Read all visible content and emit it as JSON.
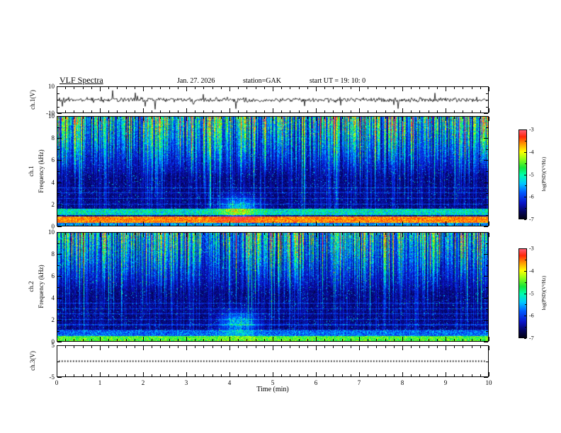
{
  "header": {
    "title": "VLF Spectra",
    "date": "Jan. 27. 2026",
    "station": "station=GAK",
    "start_ut": "start UT =  19: 10: 0"
  },
  "xaxis": {
    "label": "Time (min)",
    "range": [
      0,
      10
    ],
    "major_ticks": [
      0,
      1,
      2,
      3,
      4,
      5,
      6,
      7,
      8,
      9,
      10
    ],
    "minor_ticks_per_interval": 5
  },
  "ylabels": {
    "ch1v": "ch.1(V)",
    "ch1": "ch.1",
    "ch2": "ch.2",
    "freq": "Frequency (kHz)",
    "ch3v": "ch.3(V)"
  },
  "colorbar": {
    "label": "log(PSD)(V²/Hz)",
    "ticks": [
      -3,
      -4,
      -5,
      -6,
      -7
    ],
    "range": [
      -7,
      -3
    ]
  },
  "colormap": [
    [
      0.0,
      [
        2,
        2,
        18
      ]
    ],
    [
      0.08,
      [
        4,
        4,
        90
      ]
    ],
    [
      0.18,
      [
        10,
        20,
        200
      ]
    ],
    [
      0.3,
      [
        0,
        90,
        255
      ]
    ],
    [
      0.4,
      [
        0,
        200,
        255
      ]
    ],
    [
      0.5,
      [
        0,
        255,
        170
      ]
    ],
    [
      0.58,
      [
        20,
        230,
        60
      ]
    ],
    [
      0.68,
      [
        150,
        255,
        20
      ]
    ],
    [
      0.76,
      [
        255,
        255,
        0
      ]
    ],
    [
      0.85,
      [
        255,
        150,
        0
      ]
    ],
    [
      0.93,
      [
        255,
        40,
        10
      ]
    ],
    [
      1.0,
      [
        255,
        90,
        110
      ]
    ]
  ],
  "chart_data": [
    {
      "type": "line",
      "name": "ch1_waveform",
      "ylabel": "ch.1(V)",
      "xlim": [
        0,
        10
      ],
      "ylim": [
        -10,
        10
      ],
      "yticks_labeled": [
        10,
        -10
      ],
      "yticks_minor": [
        5,
        0,
        -5
      ],
      "summary": "broadband VLF noise waveform, mean 0 V, typical amplitude +/-3 V, sporadic impulsive spikes reaching +/-9 V across the full 10 min record",
      "noise_sigma": 1.6,
      "spike_probability": 0.02,
      "seed": 1337
    },
    {
      "type": "heatmap",
      "name": "ch1_spectrogram",
      "channel": "ch.1",
      "ylabel": "Frequency (kHz)",
      "xlim": [
        0,
        10
      ],
      "ylim": [
        0,
        10
      ],
      "yticks_labeled": [
        0,
        2,
        4,
        6,
        8,
        10
      ],
      "yticks_minor": [
        1,
        3,
        5,
        7,
        9
      ],
      "zlim": [
        -7,
        -3
      ],
      "summary": "dense impulsive sferic streaks strongest above ~5 kHz (green-yellow), dark blue background below, strong red power-supply band near 0.3-0.9 kHz, cyan-green band near 1-1.6 kHz, transient green patch near t=4.2 min at 1-2.5 kHz",
      "seed": 40502,
      "top_intensity": 1.0,
      "bands": [
        {
          "f0": 0.1,
          "f1": 0.16,
          "v": 0.46,
          "dv": 0.3
        },
        {
          "f0": 0.028,
          "f1": 0.09,
          "v": 0.86,
          "dv": 0.18
        },
        {
          "f0": 0.0,
          "f1": 0.028,
          "v": 0.34,
          "dv": 0.3
        }
      ],
      "blob": {
        "x": 0.42,
        "fy": 0.17,
        "sx": 0.03,
        "sy": 0.07,
        "amp": 0.4
      }
    },
    {
      "type": "heatmap",
      "name": "ch2_spectrogram",
      "channel": "ch.2",
      "ylabel": "Frequency (kHz)",
      "xlim": [
        0,
        10
      ],
      "ylim": [
        0,
        10
      ],
      "yticks_labeled": [
        0,
        2,
        4,
        6,
        8,
        10
      ],
      "yticks_minor": [
        1,
        3,
        5,
        7,
        9
      ],
      "zlim": [
        -7,
        -3
      ],
      "summary": "similar sferic streak pattern, slightly weaker diffuse high-frequency band, bright green-cyan band at 0-0.5 kHz, transient green patch near t=4.2 min at 1-2.5 kHz",
      "seed": 90210,
      "top_intensity": 0.85,
      "bands": [
        {
          "f0": 0.05,
          "f1": 0.1,
          "v": 0.3,
          "dv": 0.25
        },
        {
          "f0": 0.0,
          "f1": 0.05,
          "v": 0.62,
          "dv": 0.22
        }
      ],
      "blob": {
        "x": 0.42,
        "fy": 0.17,
        "sx": 0.03,
        "sy": 0.07,
        "amp": 0.38
      }
    },
    {
      "type": "line",
      "name": "ch3_waveform",
      "ylabel": "ch.3(V)",
      "xlim": [
        0,
        10
      ],
      "ylim": [
        -5,
        5
      ],
      "yticks_labeled": [
        5,
        -5
      ],
      "yticks_minor": [
        0
      ],
      "constant_value": 0,
      "line_style": "dotted",
      "summary": "flat trace at 0 V for the full record"
    }
  ]
}
